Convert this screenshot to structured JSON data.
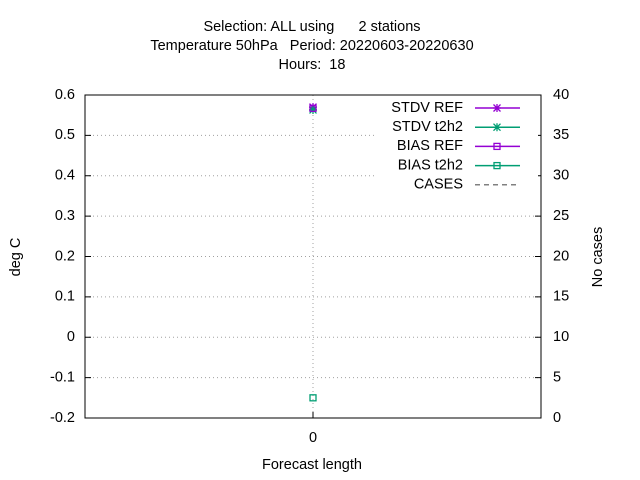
{
  "chart_data": {
    "type": "line",
    "title": "Selection: ALL using      2 stations",
    "subtitle": "Temperature 50hPa   Period: 20220603-20220630",
    "subtitle2": "Hours:  18",
    "x_label": "Forecast length",
    "y_label": "deg C",
    "y2_label": "No cases",
    "x": [
      0
    ],
    "xlim": [
      -1,
      1
    ],
    "xticks": [
      0
    ],
    "ylim": [
      -0.2,
      0.6
    ],
    "yticks": [
      -0.2,
      -0.1,
      0,
      0.1,
      0.2,
      0.3,
      0.4,
      0.5,
      0.6
    ],
    "y2lim": [
      0,
      40
    ],
    "y2ticks": [
      0,
      5,
      10,
      15,
      20,
      25,
      30,
      35,
      40
    ],
    "grid": true,
    "legend": "top-right",
    "series": [
      {
        "name": "STDV REF",
        "color": "#9400d3",
        "marker": "star",
        "values": [
          0.57
        ]
      },
      {
        "name": "STDV t2h2",
        "color": "#009e73",
        "marker": "star",
        "values": [
          0.563
        ]
      },
      {
        "name": "BIAS REF",
        "color": "#9400d3",
        "marker": "square",
        "values": [
          0.567
        ]
      },
      {
        "name": "BIAS t2h2",
        "color": "#009e73",
        "marker": "square",
        "values": [
          -0.15
        ]
      },
      {
        "name": "CASES",
        "color": "#808080",
        "marker": "none",
        "dash": true,
        "axis": "y2",
        "values": [
          null
        ]
      }
    ]
  }
}
